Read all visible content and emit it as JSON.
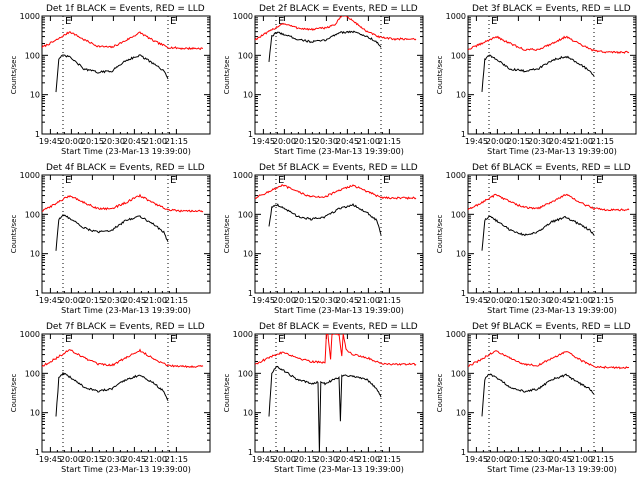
{
  "chart_data": [
    {
      "type": "line",
      "title": "Det 1f BLACK = Events, RED = LLD",
      "xlabel": "Start Time (23-Mar-13 19:39:00)",
      "ylabel": "Counts/sec",
      "yscale": "log",
      "ylim": [
        1,
        1000
      ],
      "ytick_labels": [
        "1",
        "10",
        "100",
        "1000"
      ],
      "xtick_labels": [
        "19:45",
        "20:00",
        "20:15",
        "20:30",
        "20:45",
        "21:00",
        "21:15"
      ],
      "xlim_min": [
        -15,
        105
      ],
      "markers": [
        {
          "label": "E",
          "t": 0
        },
        {
          "label": "E",
          "t": 75
        }
      ],
      "dotted_lines_min": [
        0,
        75,
        105
      ],
      "series": [
        {
          "color": "#ff0000",
          "t": [
            -15,
            -5,
            5,
            15,
            25,
            35,
            45,
            55,
            65,
            75,
            85,
            100
          ],
          "values": [
            160,
            240,
            400,
            250,
            170,
            160,
            240,
            380,
            230,
            160,
            150,
            150
          ]
        },
        {
          "color": "#000000",
          "t": [
            -5,
            -3,
            0,
            5,
            15,
            25,
            35,
            45,
            55,
            65,
            72,
            75
          ],
          "values": [
            12,
            80,
            100,
            90,
            45,
            37,
            40,
            75,
            100,
            60,
            40,
            25
          ]
        }
      ]
    },
    {
      "type": "line",
      "title": "Det 2f BLACK = Events, RED = LLD",
      "xlabel": "Start Time (23-Mar-13 19:39:00)",
      "ylabel": "Counts/sec",
      "yscale": "log",
      "ylim": [
        1,
        1000
      ],
      "ytick_labels": [
        "1",
        "10",
        "100",
        "1000"
      ],
      "xtick_labels": [
        "19:45",
        "20:00",
        "20:15",
        "20:30",
        "20:45",
        "21:00",
        "21:15"
      ],
      "xlim_min": [
        -15,
        105
      ],
      "markers": [
        {
          "label": "E",
          "t": 0
        },
        {
          "label": "E",
          "t": 75
        }
      ],
      "dotted_lines_min": [
        0,
        75,
        105
      ],
      "series": [
        {
          "color": "#ff0000",
          "t": [
            -15,
            -5,
            5,
            15,
            25,
            35,
            42,
            48,
            55,
            65,
            75,
            85,
            100
          ],
          "values": [
            250,
            400,
            650,
            500,
            450,
            500,
            600,
            1100,
            750,
            400,
            280,
            260,
            260
          ]
        },
        {
          "color": "#000000",
          "t": [
            -5,
            -3,
            0,
            5,
            15,
            25,
            35,
            45,
            55,
            65,
            72,
            75
          ],
          "values": [
            70,
            300,
            380,
            350,
            260,
            220,
            240,
            380,
            400,
            300,
            220,
            160
          ]
        }
      ]
    },
    {
      "type": "line",
      "title": "Det 3f BLACK = Events, RED = LLD",
      "xlabel": "Start Time (23-Mar-13 19:39:00)",
      "ylabel": "Counts/sec",
      "yscale": "log",
      "ylim": [
        1,
        1000
      ],
      "ytick_labels": [
        "1",
        "10",
        "100",
        "1000"
      ],
      "xtick_labels": [
        "19:45",
        "20:00",
        "20:15",
        "20:30",
        "20:45",
        "21:00",
        "21:15"
      ],
      "xlim_min": [
        -15,
        105
      ],
      "markers": [
        {
          "label": "E",
          "t": 0
        },
        {
          "label": "E",
          "t": 75
        }
      ],
      "dotted_lines_min": [
        0,
        75,
        105
      ],
      "series": [
        {
          "color": "#ff0000",
          "t": [
            -15,
            -5,
            5,
            15,
            25,
            35,
            45,
            55,
            65,
            75,
            85,
            100
          ],
          "values": [
            140,
            200,
            300,
            200,
            140,
            140,
            200,
            300,
            190,
            130,
            120,
            120
          ]
        },
        {
          "color": "#000000",
          "t": [
            -5,
            -3,
            0,
            5,
            15,
            25,
            35,
            45,
            55,
            65,
            72,
            75
          ],
          "values": [
            12,
            80,
            100,
            80,
            45,
            40,
            45,
            75,
            95,
            60,
            40,
            30
          ]
        }
      ]
    },
    {
      "type": "line",
      "title": "Det 4f BLACK = Events, RED = LLD",
      "xlabel": "Start Time (23-Mar-13 19:39:00)",
      "ylabel": "Counts/sec",
      "yscale": "log",
      "ylim": [
        1,
        1000
      ],
      "ytick_labels": [
        "1",
        "10",
        "100",
        "1000"
      ],
      "xtick_labels": [
        "19:45",
        "20:00",
        "20:15",
        "20:30",
        "20:45",
        "21:00",
        "21:15"
      ],
      "xlim_min": [
        -15,
        105
      ],
      "markers": [
        {
          "label": "E",
          "t": 0
        },
        {
          "label": "E",
          "t": 75
        }
      ],
      "dotted_lines_min": [
        0,
        75,
        105
      ],
      "series": [
        {
          "color": "#ff0000",
          "t": [
            -15,
            -5,
            5,
            15,
            25,
            35,
            45,
            55,
            65,
            75,
            85,
            100
          ],
          "values": [
            120,
            190,
            300,
            200,
            140,
            140,
            200,
            300,
            190,
            130,
            120,
            120
          ]
        },
        {
          "color": "#000000",
          "t": [
            -5,
            -3,
            0,
            5,
            15,
            25,
            35,
            45,
            55,
            65,
            72,
            75
          ],
          "values": [
            12,
            75,
            95,
            80,
            45,
            35,
            40,
            70,
            90,
            55,
            35,
            20
          ]
        }
      ]
    },
    {
      "type": "line",
      "title": "Det 5f BLACK = Events, RED = LLD",
      "xlabel": "Start Time (23-Mar-13 19:39:00)",
      "ylabel": "Counts/sec",
      "yscale": "log",
      "ylim": [
        1,
        1000
      ],
      "ytick_labels": [
        "1",
        "10",
        "100",
        "1000"
      ],
      "xtick_labels": [
        "19:45",
        "20:00",
        "20:15",
        "20:30",
        "20:45",
        "21:00",
        "21:15"
      ],
      "xlim_min": [
        -15,
        105
      ],
      "markers": [
        {
          "label": "E",
          "t": 0
        },
        {
          "label": "E",
          "t": 75
        }
      ],
      "dotted_lines_min": [
        0,
        75,
        105
      ],
      "series": [
        {
          "color": "#ff0000",
          "t": [
            -15,
            -5,
            5,
            15,
            25,
            35,
            45,
            55,
            65,
            75,
            85,
            100
          ],
          "values": [
            260,
            380,
            550,
            380,
            280,
            280,
            400,
            550,
            380,
            270,
            260,
            260
          ]
        },
        {
          "color": "#000000",
          "t": [
            -5,
            -3,
            0,
            5,
            15,
            25,
            35,
            45,
            55,
            65,
            72,
            75
          ],
          "values": [
            50,
            150,
            180,
            150,
            90,
            75,
            85,
            140,
            175,
            110,
            70,
            30
          ]
        }
      ]
    },
    {
      "type": "line",
      "title": "Det 6f BLACK = Events, RED = LLD",
      "xlabel": "Start Time (23-Mar-13 19:39:00)",
      "ylabel": "Counts/sec",
      "yscale": "log",
      "ylim": [
        1,
        1000
      ],
      "ytick_labels": [
        "1",
        "10",
        "100",
        "1000"
      ],
      "xtick_labels": [
        "19:45",
        "20:00",
        "20:15",
        "20:30",
        "20:45",
        "21:00",
        "21:15"
      ],
      "xlim_min": [
        -15,
        105
      ],
      "markers": [
        {
          "label": "E",
          "t": 0
        },
        {
          "label": "E",
          "t": 75
        }
      ],
      "dotted_lines_min": [
        0,
        75,
        105
      ],
      "series": [
        {
          "color": "#ff0000",
          "t": [
            -15,
            -5,
            5,
            15,
            25,
            35,
            45,
            55,
            65,
            75,
            85,
            100
          ],
          "values": [
            130,
            200,
            320,
            210,
            150,
            140,
            210,
            320,
            200,
            140,
            130,
            130
          ]
        },
        {
          "color": "#000000",
          "t": [
            -5,
            -3,
            0,
            5,
            15,
            25,
            35,
            45,
            55,
            65,
            72,
            75
          ],
          "values": [
            12,
            70,
            90,
            70,
            40,
            30,
            35,
            65,
            85,
            55,
            40,
            30
          ]
        }
      ]
    },
    {
      "type": "line",
      "title": "Det 7f BLACK = Events, RED = LLD",
      "xlabel": "Start Time (23-Mar-13 19:39:00)",
      "ylabel": "Counts/sec",
      "yscale": "log",
      "ylim": [
        1,
        1000
      ],
      "ytick_labels": [
        "1",
        "10",
        "100",
        "1000"
      ],
      "xtick_labels": [
        "19:45",
        "20:00",
        "20:15",
        "20:30",
        "20:45",
        "21:00",
        "21:15"
      ],
      "xlim_min": [
        -15,
        105
      ],
      "markers": [
        {
          "label": "E",
          "t": 0
        },
        {
          "label": "E",
          "t": 75
        }
      ],
      "dotted_lines_min": [
        0,
        75,
        105
      ],
      "series": [
        {
          "color": "#ff0000",
          "t": [
            -15,
            -5,
            5,
            15,
            25,
            35,
            45,
            55,
            65,
            75,
            85,
            100
          ],
          "values": [
            150,
            240,
            400,
            250,
            170,
            160,
            250,
            380,
            230,
            160,
            150,
            150
          ]
        },
        {
          "color": "#000000",
          "t": [
            -5,
            -3,
            0,
            5,
            15,
            25,
            35,
            45,
            55,
            65,
            72,
            75
          ],
          "values": [
            8,
            75,
            100,
            80,
            45,
            35,
            40,
            70,
            90,
            55,
            35,
            20
          ]
        }
      ]
    },
    {
      "type": "line",
      "title": "Det 8f BLACK = Events, RED = LLD",
      "xlabel": "Start Time (23-Mar-13 19:39:00)",
      "ylabel": "Counts/sec",
      "yscale": "log",
      "ylim": [
        1,
        1000
      ],
      "ytick_labels": [
        "1",
        "10",
        "100",
        "1000"
      ],
      "xtick_labels": [
        "19:45",
        "20:00",
        "20:15",
        "20:30",
        "20:45",
        "21:00",
        "21:15"
      ],
      "xlim_min": [
        -15,
        105
      ],
      "markers": [
        {
          "label": "E",
          "t": 0
        },
        {
          "label": "E",
          "t": 75
        }
      ],
      "dotted_lines_min": [
        0,
        75,
        105
      ],
      "series": [
        {
          "color": "#ff0000",
          "t": [
            -15,
            -5,
            5,
            15,
            25,
            35,
            36,
            37,
            39,
            40,
            45,
            47,
            48,
            50,
            55,
            65,
            75,
            85,
            100
          ],
          "values": [
            170,
            250,
            350,
            250,
            200,
            190,
            1000,
            1000,
            220,
            1000,
            1000,
            280,
            1000,
            400,
            300,
            250,
            180,
            170,
            170
          ]
        },
        {
          "color": "#000000",
          "t": [
            -5,
            -3,
            0,
            5,
            15,
            25,
            30,
            31,
            32,
            35,
            45,
            46,
            47,
            55,
            65,
            72,
            75
          ],
          "values": [
            8,
            100,
            150,
            120,
            70,
            55,
            60,
            1,
            60,
            55,
            80,
            6,
            90,
            85,
            70,
            40,
            25
          ]
        }
      ]
    },
    {
      "type": "line",
      "title": "Det 9f BLACK = Events, RED = LLD",
      "xlabel": "Start Time (23-Mar-13 19:39:00)",
      "ylabel": "Counts/sec",
      "yscale": "log",
      "ylim": [
        1,
        1000
      ],
      "ytick_labels": [
        "1",
        "10",
        "100",
        "1000"
      ],
      "xtick_labels": [
        "19:45",
        "20:00",
        "20:15",
        "20:30",
        "20:45",
        "21:00",
        "21:15"
      ],
      "xlim_min": [
        -15,
        105
      ],
      "markers": [
        {
          "label": "E",
          "t": 0
        },
        {
          "label": "E",
          "t": 75
        }
      ],
      "dotted_lines_min": [
        0,
        75,
        105
      ],
      "series": [
        {
          "color": "#ff0000",
          "t": [
            -15,
            -5,
            5,
            15,
            25,
            35,
            45,
            55,
            65,
            75,
            85,
            100
          ],
          "values": [
            150,
            230,
            380,
            240,
            170,
            160,
            240,
            360,
            220,
            150,
            140,
            140
          ]
        },
        {
          "color": "#000000",
          "t": [
            -5,
            -3,
            0,
            5,
            15,
            25,
            35,
            45,
            55,
            65,
            72,
            75
          ],
          "values": [
            8,
            70,
            95,
            80,
            45,
            35,
            40,
            70,
            90,
            55,
            40,
            30
          ]
        }
      ]
    }
  ]
}
